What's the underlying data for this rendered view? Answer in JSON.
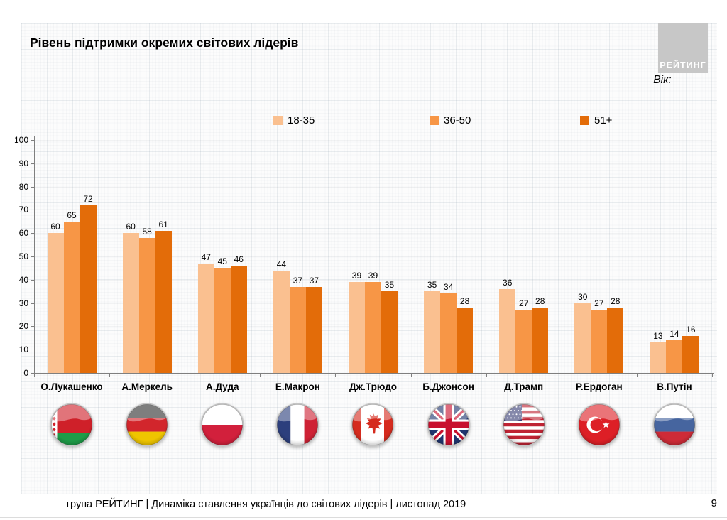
{
  "slide": {
    "title": "Рівень підтримки окремих світових лідерів",
    "logo_text": "РЕЙТИНГ",
    "age_label": "Вік:",
    "footer": "група РЕЙТИНГ | Динаміка ставлення українців до світових лідерів | листопад 2019",
    "page_number": "9"
  },
  "legend": [
    {
      "label": "18-35",
      "color": "#FAC090"
    },
    {
      "label": "36-50",
      "color": "#F79646"
    },
    {
      "label": "51+",
      "color": "#E36C09"
    }
  ],
  "chart_data": {
    "type": "bar",
    "title": "Рівень підтримки окремих світових лідерів",
    "categories": [
      "О.Лукашенко",
      "А.Меркель",
      "А.Дуда",
      "Е.Макрон",
      "Дж.Трюдо",
      "Б.Джонсон",
      "Д.Трамп",
      "Р.Ердоган",
      "В.Путін"
    ],
    "series": [
      {
        "name": "18-35",
        "color": "#FAC090",
        "values": [
          60,
          60,
          47,
          44,
          39,
          35,
          36,
          30,
          13
        ]
      },
      {
        "name": "36-50",
        "color": "#F79646",
        "values": [
          65,
          58,
          45,
          37,
          39,
          34,
          27,
          27,
          14
        ]
      },
      {
        "name": "51+",
        "color": "#E36C09",
        "values": [
          72,
          61,
          46,
          37,
          35,
          28,
          28,
          28,
          16
        ]
      }
    ],
    "ylim": [
      0,
      100
    ],
    "yticks": [
      0,
      10,
      20,
      30,
      40,
      50,
      60,
      70,
      80,
      90,
      100
    ],
    "flags": [
      "belarus",
      "germany",
      "poland",
      "france",
      "canada",
      "uk",
      "usa",
      "turkey",
      "russia"
    ],
    "legend_position": "top",
    "grid": false,
    "value_labels": true
  }
}
